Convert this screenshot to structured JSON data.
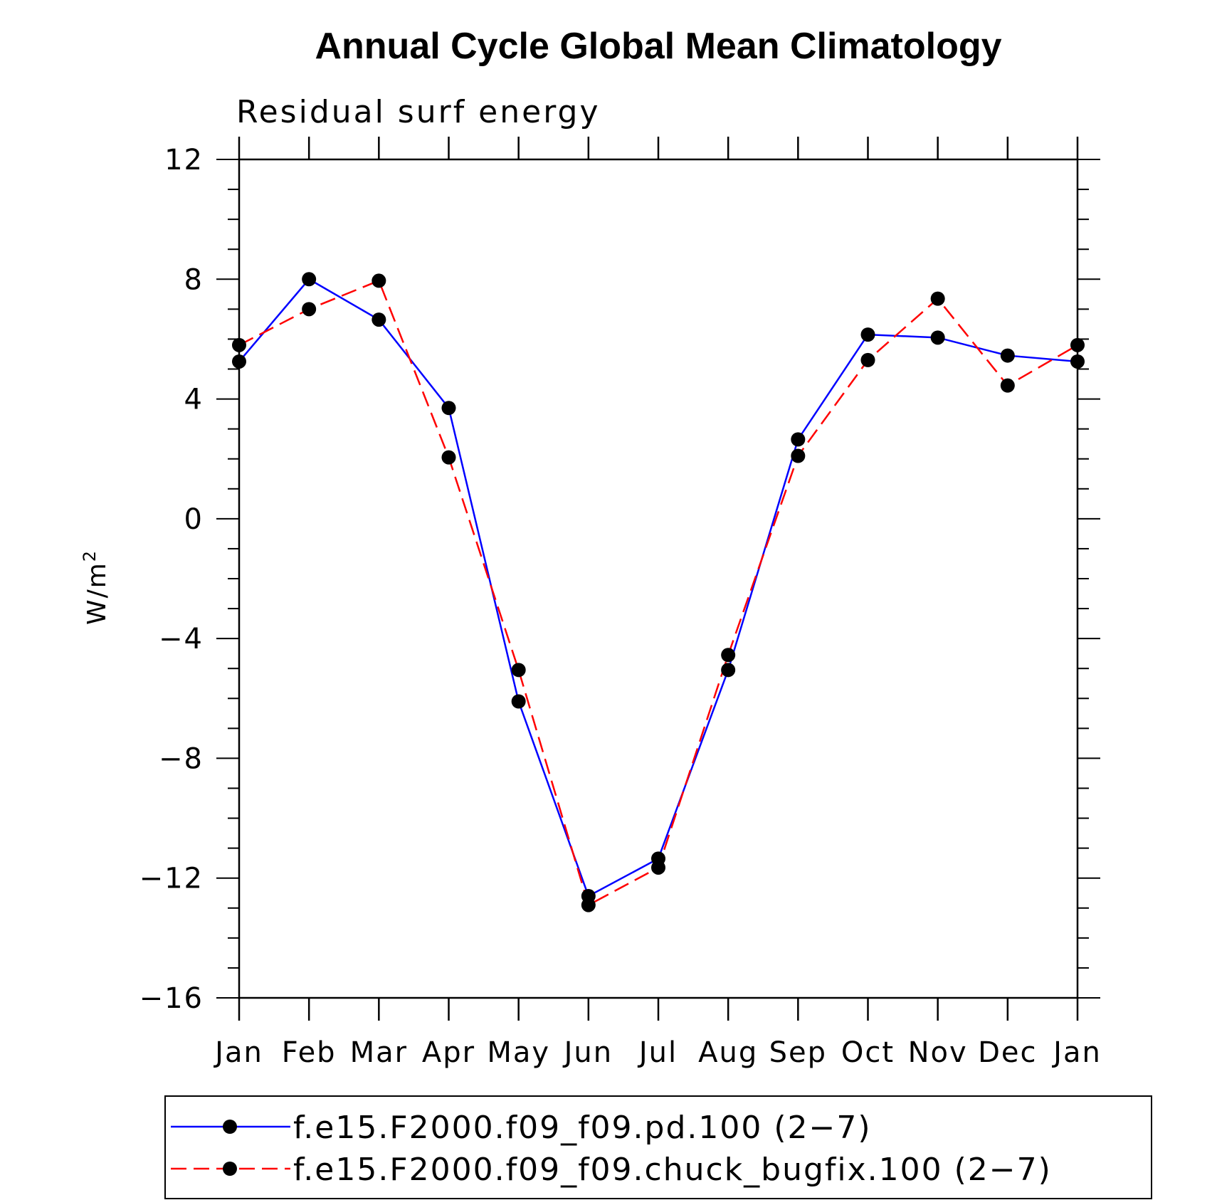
{
  "chart_data": {
    "type": "line",
    "title": "Annual Cycle Global Mean Climatology",
    "subtitle": "Residual surf energy",
    "ylabel_base": "W/m",
    "ylabel_sup": "2",
    "xlabel": "",
    "categories": [
      "Jan",
      "Feb",
      "Mar",
      "Apr",
      "May",
      "Jun",
      "Jul",
      "Aug",
      "Sep",
      "Oct",
      "Nov",
      "Dec",
      "Jan"
    ],
    "ylim": [
      -16,
      12
    ],
    "yticks": [
      12,
      8,
      4,
      0,
      -4,
      -8,
      -12,
      -16
    ],
    "ytick_labels": [
      "12",
      "8",
      "4",
      "0",
      "−4",
      "−8",
      "−12",
      "−16"
    ],
    "legend_position": "bottom",
    "series": [
      {
        "name": "f.e15.F2000.f09_f09.pd.100 (2−7)",
        "color": "#0000ff",
        "style": "solid",
        "values": [
          5.25,
          8.0,
          6.65,
          3.7,
          -6.1,
          -12.6,
          -11.35,
          -5.05,
          2.65,
          6.15,
          6.05,
          5.45,
          5.25
        ]
      },
      {
        "name": "f.e15.F2000.f09_f09.chuck_bugfix.100 (2−7)",
        "color": "#ff0000",
        "style": "dashed",
        "values": [
          5.8,
          7.0,
          7.95,
          2.05,
          -5.05,
          -12.9,
          -11.65,
          -4.55,
          2.1,
          5.3,
          7.35,
          4.45,
          5.8
        ]
      }
    ]
  }
}
